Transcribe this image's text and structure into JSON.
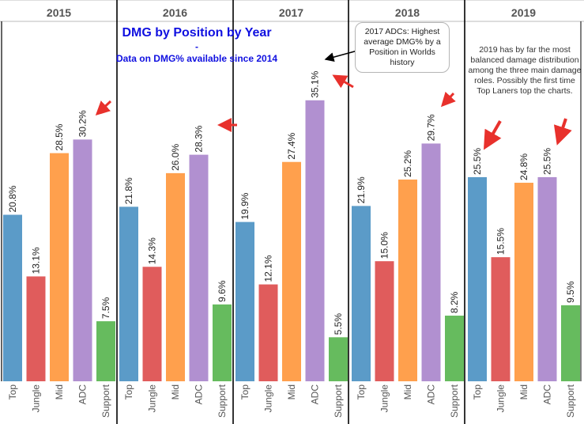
{
  "chart_data": {
    "type": "bar",
    "title": "DMG by Position by Year",
    "title_separator": "-",
    "subtitle": "Data on DMG% available since 2014",
    "panels": [
      "2015",
      "2016",
      "2017",
      "2018",
      "2019"
    ],
    "categories": [
      "Top",
      "Jungle",
      "Mid",
      "ADC",
      "Support"
    ],
    "category_colors": [
      "#5b9bc8",
      "#e05c5c",
      "#ffa04d",
      "#b190d0",
      "#66bb5e"
    ],
    "values": [
      [
        20.8,
        13.1,
        28.5,
        30.2,
        7.5
      ],
      [
        21.8,
        14.3,
        26.0,
        28.3,
        9.6
      ],
      [
        19.9,
        12.1,
        27.4,
        35.1,
        5.5
      ],
      [
        21.9,
        15.0,
        25.2,
        29.7,
        8.2
      ],
      [
        25.5,
        15.5,
        24.8,
        25.5,
        9.5
      ]
    ],
    "value_labels": [
      [
        "20.8%",
        "13.1%",
        "28.5%",
        "30.2%",
        "7.5%"
      ],
      [
        "21.8%",
        "14.3%",
        "26.0%",
        "28.3%",
        "9.6%"
      ],
      [
        "19.9%",
        "12.1%",
        "27.4%",
        "35.1%",
        "5.5%"
      ],
      [
        "21.9%",
        "15.0%",
        "25.2%",
        "29.7%",
        "8.2%"
      ],
      [
        "25.5%",
        "15.5%",
        "24.8%",
        "25.5%",
        "9.5%"
      ]
    ],
    "ylim": [
      0,
      40
    ],
    "grid": false,
    "annotations": {
      "adc_2017": "2017 ADCs: Highest average DMG% by a Position in Worlds history",
      "note_2019": "2019 has by far the most balanced damage distribution among the three main damage roles. Possibly the first time Top Laners top the charts."
    },
    "arrow_color": "#e8312c"
  }
}
